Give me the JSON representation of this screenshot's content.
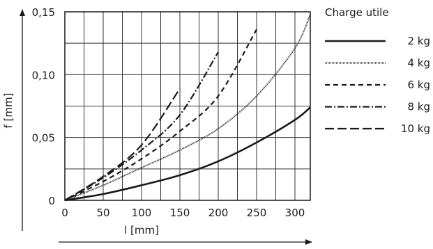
{
  "chart_data": {
    "type": "line",
    "xlabel": "l [mm]",
    "ylabel": "f [mm]",
    "xlim": [
      0,
      320
    ],
    "ylim": [
      0,
      0.15
    ],
    "x_ticks": [
      0,
      50,
      100,
      150,
      200,
      250,
      300
    ],
    "y_ticks": [
      0,
      0.05,
      0.1,
      0.15
    ],
    "y_tick_labels": [
      "0",
      "0,05",
      "0,10",
      "0,15"
    ],
    "grid": true,
    "legend_title": "Charge utile",
    "legend_position": "right",
    "series": [
      {
        "name": "2 kg",
        "dash": "solid",
        "x": [
          0,
          50,
          100,
          150,
          200,
          250,
          300,
          320
        ],
        "y": [
          0,
          0.005,
          0.012,
          0.02,
          0.031,
          0.046,
          0.064,
          0.074
        ]
      },
      {
        "name": "4 kg",
        "dash": "dense-dotted",
        "x": [
          0,
          50,
          100,
          150,
          200,
          250,
          300,
          320
        ],
        "y": [
          0,
          0.012,
          0.026,
          0.04,
          0.057,
          0.083,
          0.121,
          0.148
        ]
      },
      {
        "name": "6 kg",
        "dash": "short-dash",
        "x": [
          0,
          50,
          100,
          150,
          200,
          250
        ],
        "y": [
          0,
          0.015,
          0.033,
          0.055,
          0.083,
          0.136
        ]
      },
      {
        "name": "8 kg",
        "dash": "dash-dot",
        "x": [
          0,
          50,
          100,
          150,
          200
        ],
        "y": [
          0,
          0.018,
          0.04,
          0.068,
          0.118
        ]
      },
      {
        "name": "10 kg",
        "dash": "long-dash",
        "x": [
          0,
          50,
          100,
          150
        ],
        "y": [
          0,
          0.019,
          0.044,
          0.089
        ]
      }
    ]
  }
}
